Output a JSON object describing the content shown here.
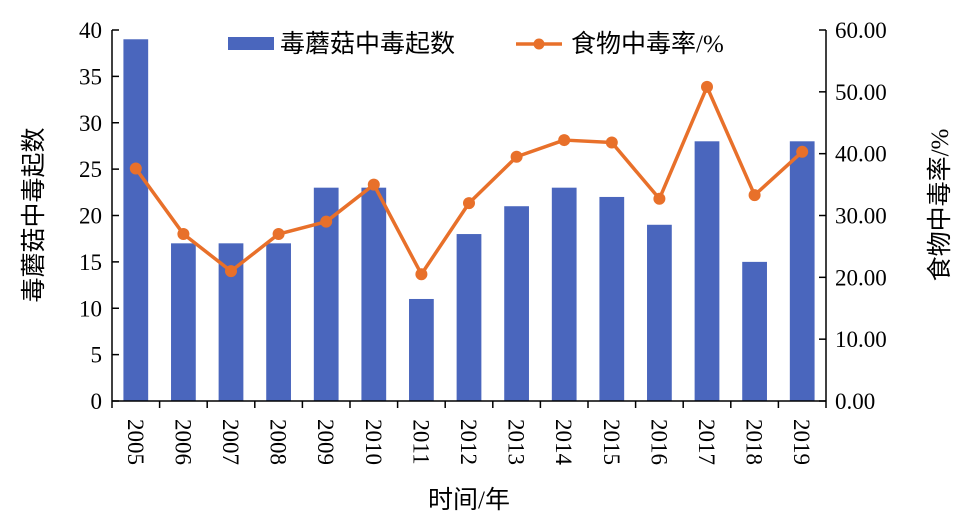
{
  "chart_data": {
    "type": "bar",
    "categories": [
      "2005",
      "2006",
      "2007",
      "2008",
      "2009",
      "2010",
      "2011",
      "2012",
      "2013",
      "2014",
      "2015",
      "2016",
      "2017",
      "2018",
      "2019"
    ],
    "xlabel": "时间/年",
    "ylabel_left": "毒蘑菇中毒起数",
    "ylabel_right": "食物中毒率/%",
    "ylim_left": [
      0,
      40
    ],
    "yticks_left": [
      "0",
      "5",
      "10",
      "15",
      "20",
      "25",
      "30",
      "35",
      "40"
    ],
    "ylim_right": [
      0,
      60
    ],
    "yticks_right": [
      "0.00",
      "10.00",
      "20.00",
      "30.00",
      "40.00",
      "50.00",
      "60.00"
    ],
    "grid": false,
    "legend_position": "top",
    "series": [
      {
        "name": "毒蘑菇中毒起数",
        "type": "bar",
        "axis": "left",
        "color": "#4A66BD",
        "values": [
          39,
          17,
          17,
          17,
          23,
          23,
          11,
          18,
          21,
          23,
          22,
          19,
          28,
          15,
          28
        ]
      },
      {
        "name": "食物中毒率/%",
        "type": "line",
        "axis": "right",
        "color": "#E8702A",
        "values": [
          37.6,
          27.0,
          21.0,
          27.0,
          29.0,
          35.0,
          20.5,
          32.0,
          39.5,
          42.2,
          41.8,
          32.7,
          50.8,
          33.3,
          40.3
        ]
      }
    ]
  }
}
